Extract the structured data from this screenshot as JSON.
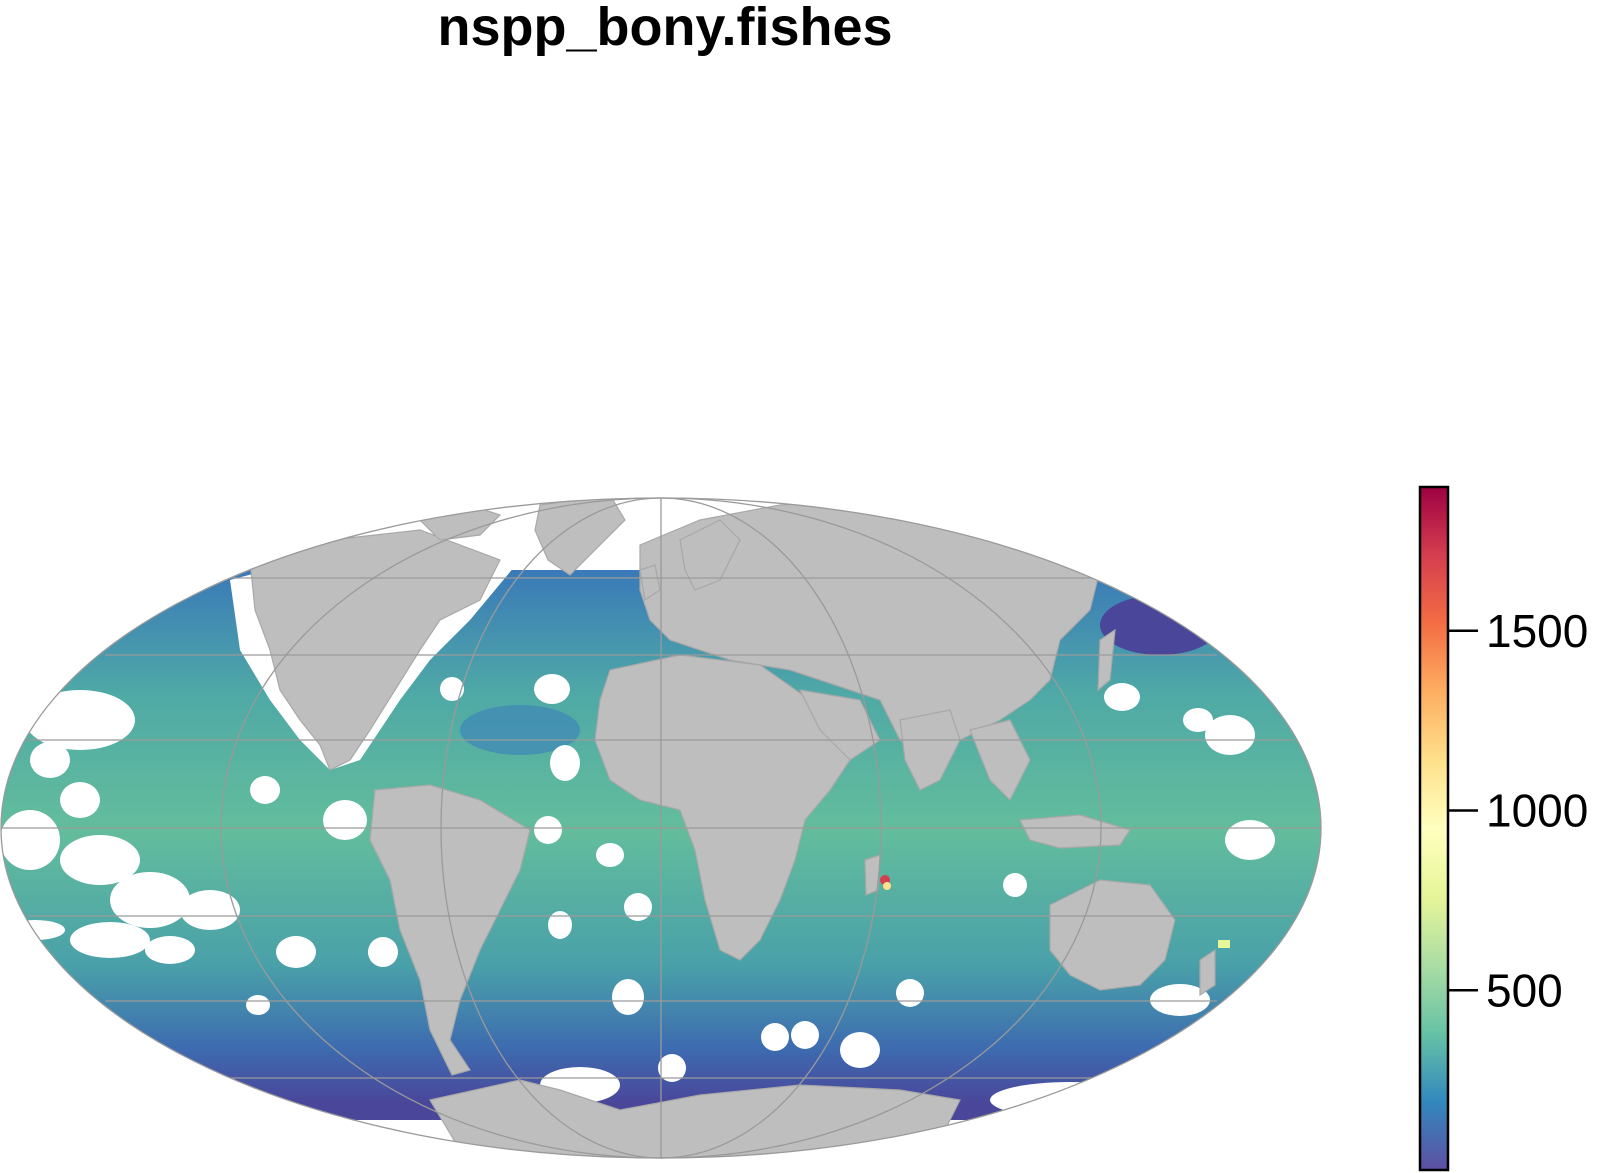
{
  "map": {
    "title": "nspp_bony.fishes",
    "projection": "Mollweide",
    "land_color": "#bebebe",
    "land_border_color": "#a8a8a8",
    "graticule_color": "#9a9a9a",
    "nodata_color": "#ffffff"
  },
  "legend": {
    "min": 0,
    "max": 1900,
    "ticks": [
      {
        "value": 500,
        "label": "500"
      },
      {
        "value": 1000,
        "label": "1000"
      },
      {
        "value": 1500,
        "label": "1500"
      }
    ],
    "colors": [
      "#5e4fa2",
      "#3288bd",
      "#66c2a5",
      "#abdda4",
      "#e6f598",
      "#ffffbf",
      "#fee08b",
      "#fdae61",
      "#f46d43",
      "#d53e4f",
      "#9e0142"
    ]
  }
}
